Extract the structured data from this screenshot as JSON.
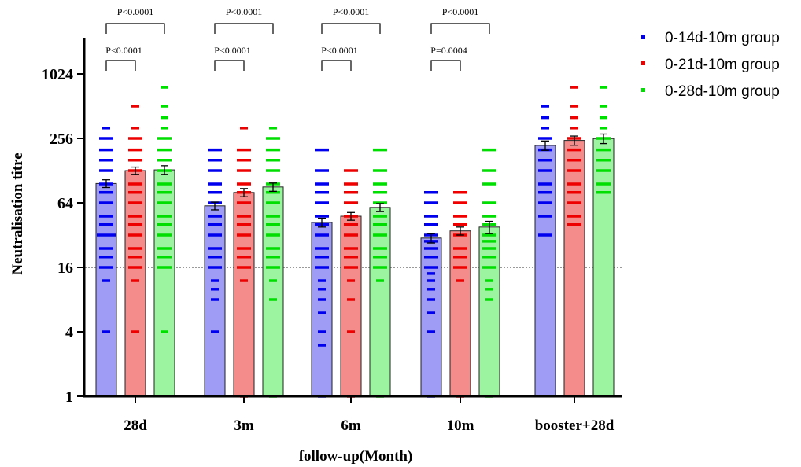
{
  "chart_data": {
    "type": "bar",
    "xlabel": "follow-up(Month)",
    "ylabel": "Neutralisation titre",
    "yscale": "log2",
    "ylim": [
      1,
      2048
    ],
    "yticks": [
      "1",
      "4",
      "16",
      "64",
      "256",
      "1024"
    ],
    "reference_line": 16,
    "categories": [
      "28d",
      "3m",
      "6m",
      "10m",
      "booster+28d"
    ],
    "series": [
      {
        "name": "0-14d-10m group",
        "color": "#0000ee",
        "fill": "#9e9cf4",
        "values": [
          97,
          60,
          42,
          30,
          220
        ],
        "errors": [
          8,
          5,
          4,
          3,
          22
        ],
        "points": [
          [
            4,
            12,
            16,
            20,
            24,
            32,
            32,
            40,
            48,
            64,
            80,
            96,
            128,
            160,
            200,
            256,
            320
          ],
          [
            4,
            8,
            10,
            12,
            16,
            20,
            24,
            32,
            40,
            48,
            64,
            80,
            96,
            128,
            160,
            200
          ],
          [
            1,
            3,
            4,
            6,
            8,
            10,
            12,
            16,
            20,
            24,
            32,
            40,
            48,
            64,
            80,
            96,
            128,
            200
          ],
          [
            1,
            4,
            6,
            8,
            10,
            12,
            14,
            16,
            20,
            24,
            28,
            32,
            40,
            48,
            64,
            80
          ],
          [
            32,
            48,
            64,
            80,
            96,
            128,
            160,
            200,
            256,
            320,
            400,
            512
          ]
        ]
      },
      {
        "name": "0-21d-10m group",
        "color": "#ee0000",
        "fill": "#f48c8c",
        "values": [
          128,
          80,
          48,
          35,
          245
        ],
        "errors": [
          10,
          7,
          4,
          3,
          24
        ],
        "points": [
          [
            4,
            12,
            16,
            20,
            24,
            32,
            40,
            48,
            64,
            80,
            96,
            128,
            160,
            200,
            256,
            320,
            512
          ],
          [
            1,
            12,
            16,
            20,
            24,
            32,
            40,
            48,
            64,
            80,
            96,
            128,
            160,
            200,
            320
          ],
          [
            1,
            4,
            8,
            12,
            16,
            20,
            24,
            32,
            40,
            48,
            64,
            80,
            96,
            128
          ],
          [
            1,
            12,
            16,
            20,
            24,
            32,
            40,
            48,
            64,
            80
          ],
          [
            40,
            48,
            64,
            80,
            96,
            128,
            160,
            200,
            256,
            320,
            400,
            512,
            768
          ]
        ]
      },
      {
        "name": "0-28d-10m group",
        "color": "#00dd00",
        "fill": "#9cf4a0",
        "values": [
          130,
          90,
          58,
          38,
          255
        ],
        "errors": [
          12,
          8,
          5,
          5,
          26
        ],
        "points": [
          [
            4,
            16,
            20,
            24,
            32,
            40,
            48,
            64,
            80,
            96,
            128,
            160,
            200,
            256,
            320,
            400,
            512,
            768
          ],
          [
            1,
            8,
            12,
            16,
            20,
            24,
            32,
            40,
            48,
            64,
            80,
            96,
            128,
            160,
            200,
            256,
            320
          ],
          [
            1,
            12,
            16,
            20,
            24,
            32,
            40,
            48,
            64,
            80,
            96,
            128,
            200
          ],
          [
            1,
            8,
            10,
            12,
            16,
            20,
            24,
            28,
            32,
            40,
            48,
            64,
            96,
            128,
            200
          ],
          [
            80,
            96,
            128,
            160,
            200,
            256,
            320,
            400,
            512,
            768
          ]
        ]
      }
    ],
    "comparisons": [
      {
        "category": "28d",
        "top": "P<0.0001",
        "bottom": "P<0.0001"
      },
      {
        "category": "3m",
        "top": "P<0.0001",
        "bottom": "P<0.0001"
      },
      {
        "category": "6m",
        "top": "P<0.0001",
        "bottom": "P<0.0001"
      },
      {
        "category": "10m",
        "top": "P<0.0001",
        "bottom": "P=0.0004"
      }
    ],
    "legend_position": "top-right"
  }
}
